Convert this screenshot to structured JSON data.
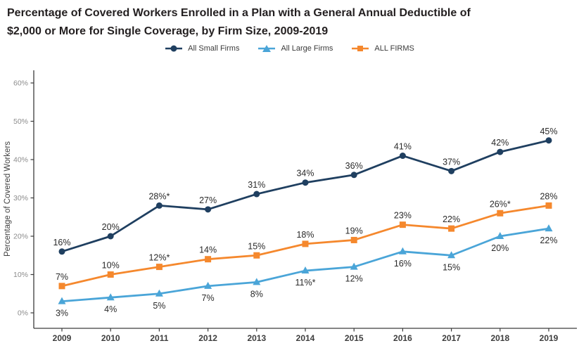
{
  "title": {
    "line1": "Percentage of Covered Workers Enrolled in a Plan with a General Annual Deductible of",
    "line2": "$2,000 or More for Single Coverage, by Firm Size, 2009-2019"
  },
  "chart_data": {
    "type": "line",
    "title": "Percentage of Covered Workers Enrolled in a Plan with a General Annual Deductible of $2,000 or More for Single Coverage, by Firm Size, 2009-2019",
    "xlabel": "",
    "ylabel": "Percentage of Covered Workers",
    "categories": [
      "2009",
      "2010",
      "2011",
      "2012",
      "2013",
      "2014",
      "2015",
      "2016",
      "2017",
      "2018",
      "2019"
    ],
    "y_ticks": [
      "0%",
      "10%",
      "20%",
      "30%",
      "40%",
      "50%",
      "60%"
    ],
    "y_tick_values": [
      0,
      10,
      20,
      30,
      40,
      50,
      60
    ],
    "ylim": [
      0,
      63
    ],
    "grid": false,
    "legend_position": "top",
    "colors": {
      "small_firms": "#1f3f60",
      "large_firms": "#4aa5d8",
      "all_firms": "#f5882d",
      "axis": "#3c3c3c",
      "y_tick_label": "#8c8c8c",
      "x_tick_label": "#3d3d3d",
      "data_label": "#2a2a2a"
    },
    "series": [
      {
        "name": "All Small Firms",
        "color": "#1f3f60",
        "marker": "circle",
        "label_position": "above",
        "values": [
          16,
          20,
          28,
          27,
          31,
          34,
          36,
          41,
          37,
          42,
          45
        ],
        "labels": [
          "16%",
          "20%",
          "28%*",
          "27%",
          "31%",
          "34%",
          "36%",
          "41%",
          "37%",
          "42%",
          "45%"
        ]
      },
      {
        "name": "All Large Firms",
        "color": "#4aa5d8",
        "marker": "triangle",
        "label_position": "below",
        "values": [
          3,
          4,
          5,
          7,
          8,
          11,
          12,
          16,
          15,
          20,
          22
        ],
        "labels": [
          "3%",
          "4%",
          "5%",
          "7%",
          "8%",
          "11%*",
          "12%",
          "16%",
          "15%",
          "20%",
          "22%"
        ]
      },
      {
        "name": "ALL FIRMS",
        "color": "#f5882d",
        "marker": "square",
        "label_position": "above",
        "values": [
          7,
          10,
          12,
          14,
          15,
          18,
          19,
          23,
          22,
          26,
          28
        ],
        "labels": [
          "7%",
          "10%",
          "12%*",
          "14%",
          "15%",
          "18%",
          "19%",
          "23%",
          "22%",
          "26%*",
          "28%"
        ]
      }
    ]
  }
}
